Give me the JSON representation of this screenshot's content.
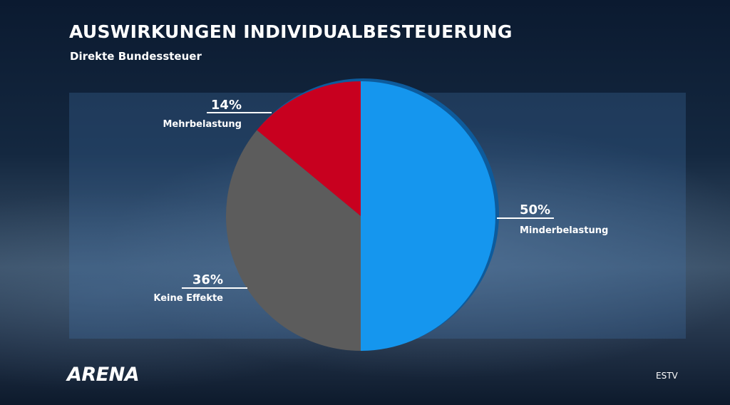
{
  "header": {
    "title": "AUSWIRKUNGEN INDIVIDUALBESTEUERUNG",
    "subtitle": "Direkte Bundessteuer"
  },
  "brand": {
    "logo_text": "ARENA"
  },
  "source": "ESTV",
  "chart_data": {
    "type": "pie",
    "title": "AUSWIRKUNGEN INDIVIDUALBESTEUERUNG",
    "subtitle": "Direkte Bundessteuer",
    "slices": [
      {
        "label": "Minderbelastung",
        "value": 50,
        "value_label": "50%",
        "color": "#1596ee"
      },
      {
        "label": "Keine Effekte",
        "value": 36,
        "value_label": "36%",
        "color": "#5c5c5c"
      },
      {
        "label": "Mehrbelastung",
        "value": 14,
        "value_label": "14%",
        "color": "#c8001f"
      }
    ],
    "legend": "none"
  }
}
